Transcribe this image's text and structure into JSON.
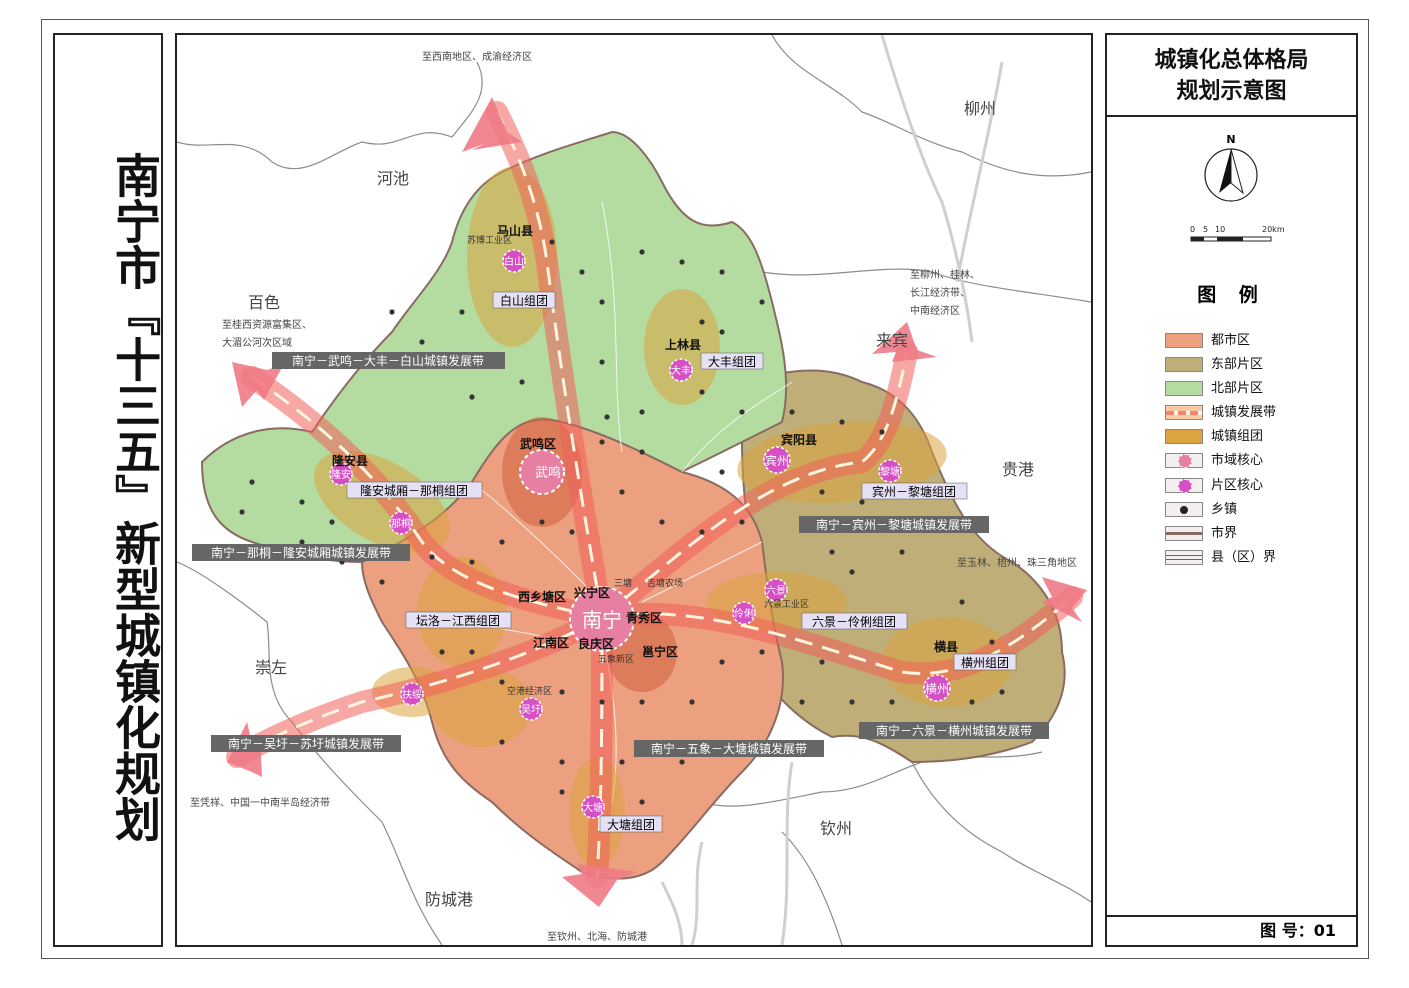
{
  "title": "南宁市『十三五』新型城镇化规划",
  "legend": {
    "map_title": [
      "城镇化总体格局",
      "规划示意图"
    ],
    "north_label": "N",
    "scale_labels": [
      "0",
      "5",
      "10",
      "20km"
    ],
    "heading": "图 例",
    "items": [
      {
        "label": "都市区",
        "color": "#eda07f"
      },
      {
        "label": "东部片区",
        "color": "#bfae78"
      },
      {
        "label": "北部片区",
        "color": "#b4dca0"
      },
      {
        "label": "城镇发展带",
        "color": "#f3856f"
      },
      {
        "label": "城镇组团",
        "color": "#dba441"
      },
      {
        "label": "市域核心",
        "color": "#e77fa3"
      },
      {
        "label": "片区核心",
        "color": "#d64fc4"
      },
      {
        "label": "乡镇",
        "color": "#222222"
      },
      {
        "label": "市界",
        "color": "#8a6b62"
      },
      {
        "label": "县（区）界",
        "color": "#666666"
      }
    ],
    "figure_number": "图  号：01"
  },
  "map": {
    "neighbors": [
      "河池",
      "柳州",
      "百色",
      "来宾",
      "贵港",
      "崇左",
      "钦州",
      "防城港"
    ],
    "destinations": [
      "至西南地区、成渝经济区",
      "至柳州、桂林、",
      "长江经济带、",
      "中南经济区",
      "至桂西资源富集区、",
      "大湄公河次区域",
      "至玉林、梧州、珠三角地区",
      "至凭祥、中国一中南半岛经济带",
      "至钦州、北海、防城港"
    ],
    "counties": [
      "马山县",
      "上林县",
      "武鸣区",
      "宾阳县",
      "隆安县",
      "横县",
      "西乡塘区",
      "兴宁区",
      "青秀区",
      "江南区",
      "良庆区",
      "邕宁区"
    ],
    "cores": [
      "白山",
      "大丰",
      "武鸣",
      "宾州",
      "黎塘",
      "隆安",
      "那桐",
      "六景",
      "伶俐",
      "横州",
      "扶绥",
      "吴圩",
      "大塘"
    ],
    "city_core": "南宁",
    "clusters": [
      "白山组团",
      "大丰组团",
      "宾州－黎塘组团",
      "隆安城厢－那桐组团",
      "坛洛－江西组团",
      "六景－伶俐组团",
      "横州组团",
      "大塘组团"
    ],
    "belts": [
      "南宁－武鸣－大丰－白山城镇发展带",
      "南宁－宾州－黎塘城镇发展带",
      "南宁－那桐－隆安城厢城镇发展带",
      "南宁－吴圩－苏圩城镇发展带",
      "南宁－五象－大塘城镇发展带",
      "南宁－六景－横州城镇发展带"
    ],
    "small_places": [
      "苏博工业区",
      "六景工业区",
      "空港经济区",
      "五象新区",
      "三塘",
      "吉塘农场"
    ]
  }
}
